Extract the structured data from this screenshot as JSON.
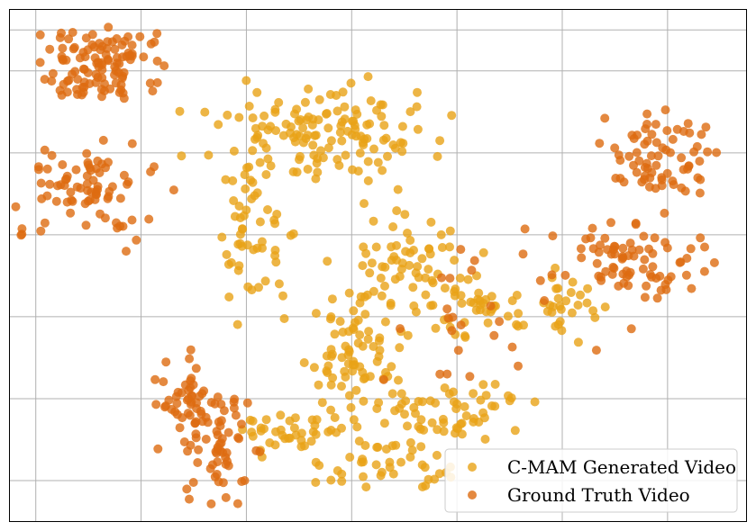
{
  "chart_data": {
    "type": "scatter",
    "title": "",
    "xlabel": "",
    "ylabel": "",
    "xlim": [
      -3.25,
      3.75
    ],
    "ylim": [
      -3.0,
      3.25
    ],
    "grid": true,
    "legend_position": "bottom-right",
    "x_ticks": [
      -3,
      -2,
      -1,
      0,
      1,
      2,
      3
    ],
    "y_ticks": [
      -2.5,
      -1.5,
      -0.5,
      0.5,
      1.5,
      2.5,
      3.0
    ],
    "series": [
      {
        "name": "C-MAM Generated Video",
        "color": "#e8a317",
        "clusters": [
          {
            "cx": -0.25,
            "cy": 1.75,
            "rx": 0.95,
            "ry": 0.5,
            "n": 130
          },
          {
            "cx": -0.9,
            "cy": 0.55,
            "rx": 0.3,
            "ry": 0.9,
            "n": 60
          },
          {
            "cx": 0.6,
            "cy": 0.1,
            "rx": 0.6,
            "ry": 0.55,
            "n": 70
          },
          {
            "cx": 0.0,
            "cy": -1.05,
            "rx": 0.45,
            "ry": 0.7,
            "n": 80
          },
          {
            "cx": -0.55,
            "cy": -1.95,
            "rx": 0.45,
            "ry": 0.25,
            "n": 40
          },
          {
            "cx": 0.95,
            "cy": -1.65,
            "rx": 0.7,
            "ry": 0.3,
            "n": 55
          },
          {
            "cx": 1.3,
            "cy": -0.45,
            "rx": 0.5,
            "ry": 0.3,
            "n": 35
          },
          {
            "cx": 0.35,
            "cy": -2.3,
            "rx": 0.5,
            "ry": 0.3,
            "n": 40
          },
          {
            "cx": 2.1,
            "cy": -0.35,
            "rx": 0.25,
            "ry": 0.45,
            "n": 25
          }
        ]
      },
      {
        "name": "Ground Truth Video",
        "color": "#dd6b10",
        "clusters": [
          {
            "cx": -2.35,
            "cy": 2.55,
            "rx": 0.55,
            "ry": 0.45,
            "n": 110
          },
          {
            "cx": -2.55,
            "cy": 1.1,
            "rx": 0.6,
            "ry": 0.55,
            "n": 80
          },
          {
            "cx": -1.55,
            "cy": -1.55,
            "rx": 0.3,
            "ry": 0.4,
            "n": 50
          },
          {
            "cx": -1.2,
            "cy": -2.1,
            "rx": 0.3,
            "ry": 0.6,
            "n": 55
          },
          {
            "cx": 2.95,
            "cy": 1.5,
            "rx": 0.45,
            "ry": 0.45,
            "n": 70
          },
          {
            "cx": 2.6,
            "cy": 0.15,
            "rx": 0.7,
            "ry": 0.45,
            "n": 80
          },
          {
            "cx": 1.1,
            "cy": -0.5,
            "rx": 1.0,
            "ry": 0.8,
            "n": 25
          }
        ]
      }
    ]
  }
}
